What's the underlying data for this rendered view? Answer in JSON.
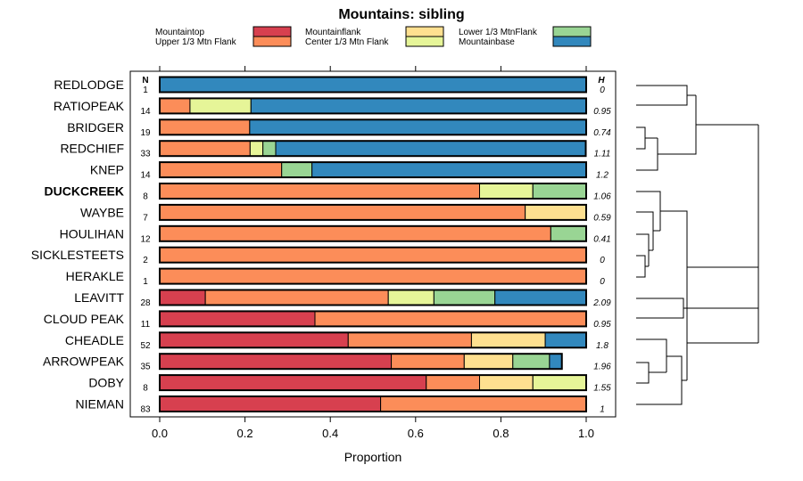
{
  "chart_data": {
    "type": "bar",
    "orientation": "horizontal",
    "stacked": true,
    "title": "Mountains: sibling",
    "xlabel": "Proportion",
    "ylabel": "",
    "xlim": [
      0,
      1
    ],
    "x_ticks": [
      "0.0",
      "0.2",
      "0.4",
      "0.6",
      "0.8",
      "1.0"
    ],
    "n_header": "N",
    "h_header": "H",
    "legend": {
      "placement": "top",
      "entries": [
        {
          "name": "Mountaintop",
          "color": "#d7404f"
        },
        {
          "name": "Upper 1/3 Mtn Flank",
          "color": "#fc8d59"
        },
        {
          "name": "Mountainflank",
          "color": "#fee090"
        },
        {
          "name": "Center 1/3 Mtn Flank",
          "color": "#e6f598"
        },
        {
          "name": "Lower 1/3 MtnFlank",
          "color": "#99d594"
        },
        {
          "name": "Mountainbase",
          "color": "#3288bd"
        }
      ]
    },
    "categories": [
      "REDLODGE",
      "RATIOPEAK",
      "BRIDGER",
      "REDCHIEF",
      "KNEP",
      "DUCKCREEK",
      "WAYBE",
      "HOULIHAN",
      "SICKLESTEETS",
      "HERAKLE",
      "LEAVITT",
      "CLOUD PEAK",
      "CHEADLE",
      "ARROWPEAK",
      "DOBY",
      "NIEMAN"
    ],
    "highlighted": [
      "DUCKCREEK"
    ],
    "n_values": [
      "1",
      "14",
      "19",
      "33",
      "14",
      "8",
      "7",
      "12",
      "2",
      "1",
      "28",
      "11",
      "52",
      "35",
      "8",
      "83"
    ],
    "h_values": [
      "0",
      "0.95",
      "0.74",
      "1.11",
      "1.2",
      "1.06",
      "0.59",
      "0.41",
      "0",
      "0",
      "2.09",
      "0.95",
      "1.8",
      "1.96",
      "1.55",
      "1"
    ],
    "series": [
      {
        "name": "Mountaintop",
        "values": [
          0,
          0,
          0,
          0,
          0,
          0,
          0,
          0,
          0,
          0,
          0.107,
          0.364,
          0.442,
          0.543,
          0.625,
          0.518
        ]
      },
      {
        "name": "Upper 1/3 Mtn Flank",
        "values": [
          0,
          0.071,
          0.211,
          0.212,
          0.286,
          0.75,
          0.857,
          0.917,
          1.0,
          1.0,
          0.429,
          0.636,
          0.289,
          0.171,
          0.125,
          0.482
        ]
      },
      {
        "name": "Mountainflank",
        "values": [
          0,
          0,
          0,
          0,
          0,
          0,
          0.143,
          0,
          0,
          0,
          0,
          0,
          0.173,
          0.114,
          0.125,
          0
        ]
      },
      {
        "name": "Center 1/3 Mtn Flank",
        "values": [
          0,
          0.143,
          0,
          0.03,
          0,
          0.125,
          0,
          0,
          0,
          0,
          0.107,
          0,
          0,
          0,
          0.125,
          0
        ]
      },
      {
        "name": "Lower 1/3 MtnFlank",
        "values": [
          0,
          0,
          0,
          0.03,
          0.071,
          0.125,
          0,
          0.083,
          0,
          0,
          0.143,
          0,
          0,
          0.086,
          0,
          0
        ]
      },
      {
        "name": "Mountainbase",
        "values": [
          1.0,
          0.786,
          0.789,
          0.727,
          0.643,
          0,
          0,
          0,
          0,
          0,
          0.214,
          0,
          0.096,
          0.029,
          0,
          0
        ]
      }
    ]
  }
}
